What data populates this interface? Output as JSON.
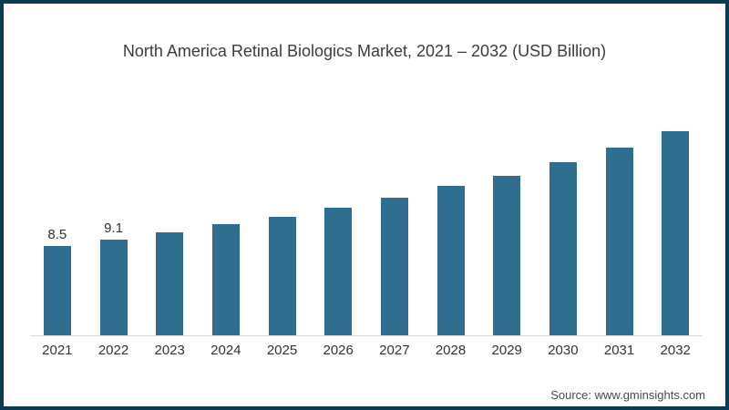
{
  "frame": {
    "border_color": "#0c3a50",
    "background_color": "#ffffff"
  },
  "chart_data": {
    "type": "bar",
    "title": "North America Retinal Biologics Market, 2021 – 2032 (USD Billion)",
    "categories": [
      "2021",
      "2022",
      "2023",
      "2024",
      "2025",
      "2026",
      "2027",
      "2028",
      "2029",
      "2030",
      "2031",
      "2032"
    ],
    "values": [
      8.5,
      9.1,
      9.8,
      10.6,
      11.3,
      12.2,
      13.1,
      14.3,
      15.2,
      16.5,
      17.9,
      19.5
    ],
    "value_labels_shown": [
      "8.5",
      "9.1",
      "",
      "",
      "",
      "",
      "",
      "",
      "",
      "",
      "",
      ""
    ],
    "bar_color": "#2f6e8e",
    "axis_line_color": "#d9d9d9",
    "label_color": "#333333",
    "title_color": "#3c3c3c",
    "xlabel": "",
    "ylabel": "",
    "ylim": [
      0,
      20
    ],
    "grid": false,
    "legend": false,
    "y_axis_visible": false
  },
  "source": {
    "label": "Source: www.gminsights.com"
  }
}
